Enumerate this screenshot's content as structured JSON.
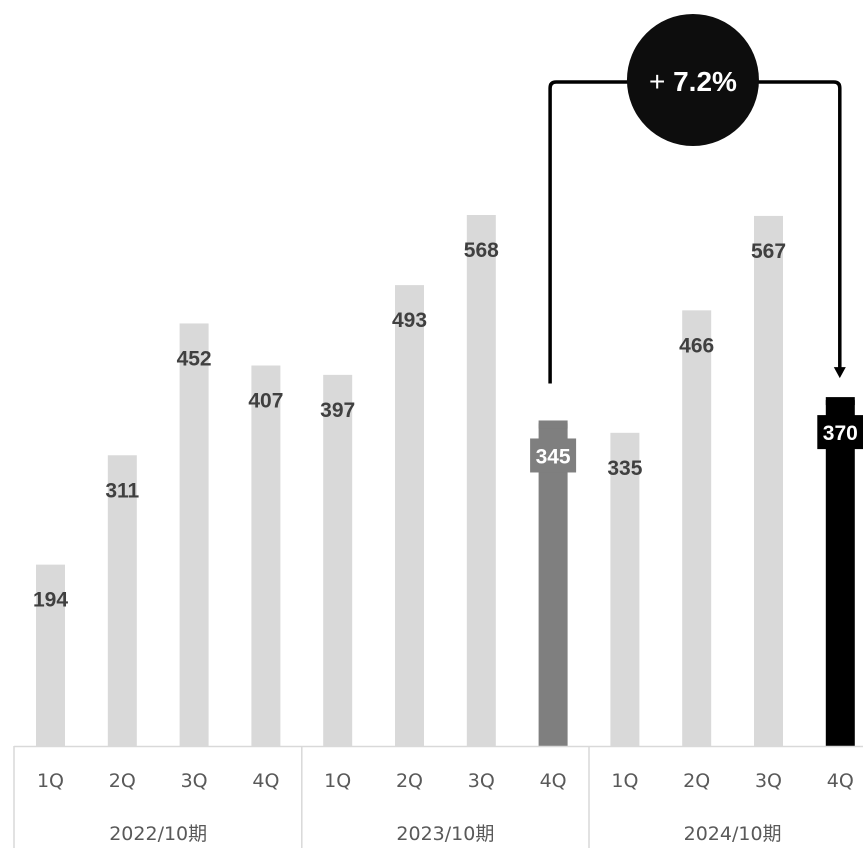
{
  "chart_data": {
    "type": "bar",
    "title": "",
    "xlabel": "",
    "ylabel": "",
    "categories": [
      "1Q",
      "2Q",
      "3Q",
      "4Q",
      "1Q",
      "2Q",
      "3Q",
      "4Q",
      "1Q",
      "2Q",
      "3Q",
      "4Q"
    ],
    "groups": [
      "2022/10期",
      "2023/10期",
      "2024/10期"
    ],
    "values": [
      194,
      311,
      452,
      407,
      397,
      493,
      568,
      345,
      335,
      466,
      567,
      370
    ],
    "highlight": [
      {
        "index": 7,
        "color": "#7f7f7f"
      },
      {
        "index": 11,
        "color": "#000000"
      }
    ],
    "bar_color": "#d9d9d9",
    "label_color": "#404040",
    "annotation": {
      "prefix": "+",
      "value": "7.2%",
      "from_index": 7,
      "to_index": 11
    },
    "ylim": [
      0,
      600
    ],
    "grid": false,
    "legend": "none"
  }
}
